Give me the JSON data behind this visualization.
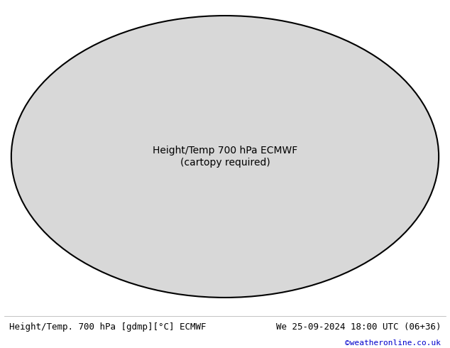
{
  "title_left": "Height/Temp. 700 hPa [gdmp][°C] ECMWF",
  "title_right": "We 25-09-2024 18:00 UTC (06+36)",
  "credit": "©weatheronline.co.uk",
  "background_color": "#ffffff",
  "land_color": "#c8f0c8",
  "ocean_color": "#c8c8c8",
  "map_outer_color": "#c8c8c8",
  "title_fontsize": 9,
  "credit_color": "#0000cc",
  "text_color": "#000000",
  "figsize": [
    6.34,
    4.9
  ],
  "dpi": 100,
  "geo_levels": [
    244,
    248,
    252,
    256,
    260,
    264,
    268,
    272,
    276,
    280,
    284,
    288,
    292,
    296,
    300,
    304,
    308,
    312,
    316,
    320
  ],
  "geo_thick_levels": [
    284,
    292,
    300,
    308,
    316
  ],
  "temp_levels": [
    -50,
    -45,
    -40,
    -35,
    -30,
    -25,
    -20,
    -15,
    -10,
    -5,
    0,
    5,
    10,
    15
  ],
  "temp_colors": [
    "#aa00aa",
    "#0000ff",
    "#0055ff",
    "#0099ff",
    "#00cccc",
    "#00bb00",
    "#88cc00",
    "#cccc00",
    "#ff8800",
    "#ff4400",
    "#ff00ff",
    "#ff00ff",
    "#ff44ff",
    "#ff88ff"
  ],
  "temp_thick_levels": [
    0
  ],
  "temp_thick_color": "#ff00ff"
}
